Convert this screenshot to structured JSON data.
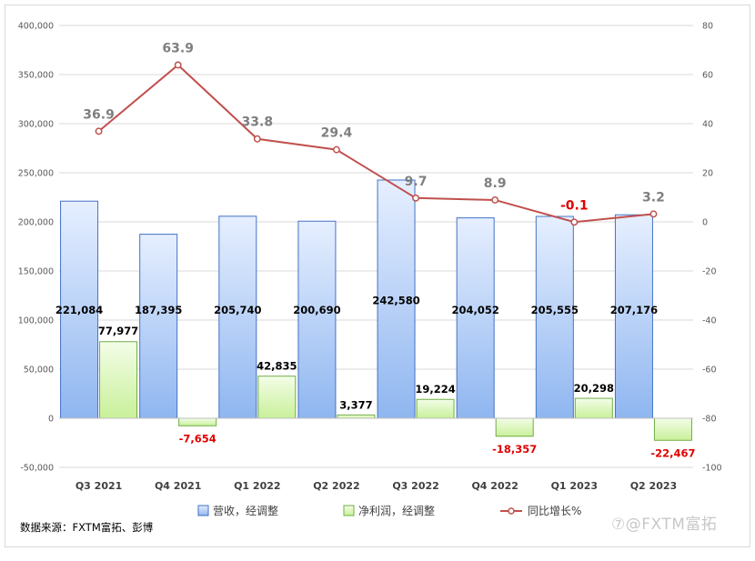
{
  "chart_data": {
    "type": "bar",
    "categories": [
      "Q3 2021",
      "Q4 2021",
      "Q1 2022",
      "Q2 2022",
      "Q3 2022",
      "Q4 2022",
      "Q1 2023",
      "Q2 2023"
    ],
    "series": [
      {
        "name": "营收，经调整",
        "type": "bar",
        "axis": "left",
        "color": "#9dc3f5",
        "values": [
          221084,
          187395,
          205740,
          200690,
          242580,
          204052,
          205555,
          207176
        ],
        "labels": [
          "221,084",
          "187,395",
          "205,740",
          "200,690",
          "242,580",
          "204,052",
          "205,555",
          "207,176"
        ]
      },
      {
        "name": "净利润，经调整",
        "type": "bar",
        "axis": "left",
        "color": "#d5f5b0",
        "values": [
          77977,
          -7654,
          42835,
          3377,
          19224,
          -18357,
          20298,
          -22467
        ],
        "labels": [
          "77,977",
          "-7,654",
          "42,835",
          "3,377",
          "19,224",
          "-18,357",
          "20,298",
          "-22,467"
        ]
      },
      {
        "name": "同比增长%",
        "type": "line",
        "axis": "right",
        "color": "#c0504d",
        "values": [
          36.9,
          63.9,
          33.8,
          29.4,
          9.7,
          8.9,
          -0.1,
          3.2
        ],
        "labels": [
          "36.9",
          "63.9",
          "33.8",
          "29.4",
          "9.7",
          "8.9",
          "-0.1",
          "3.2"
        ]
      }
    ],
    "ylim_left": [
      -50000,
      400000
    ],
    "ylim_right": [
      -100,
      80
    ],
    "yticks_left": [
      "400,000",
      "350,000",
      "300,000",
      "250,000",
      "200,000",
      "150,000",
      "100,000",
      "50,000",
      "0",
      "-50,000"
    ],
    "yticks_right": [
      "80",
      "60",
      "40",
      "20",
      "0",
      "-20",
      "-40",
      "-60",
      "-80",
      "-100"
    ],
    "grid": true,
    "legend_position": "bottom"
  },
  "source_text": "数据来源：FXTM富拓、彭博",
  "watermark_text": "⑦@FXTM富拓"
}
